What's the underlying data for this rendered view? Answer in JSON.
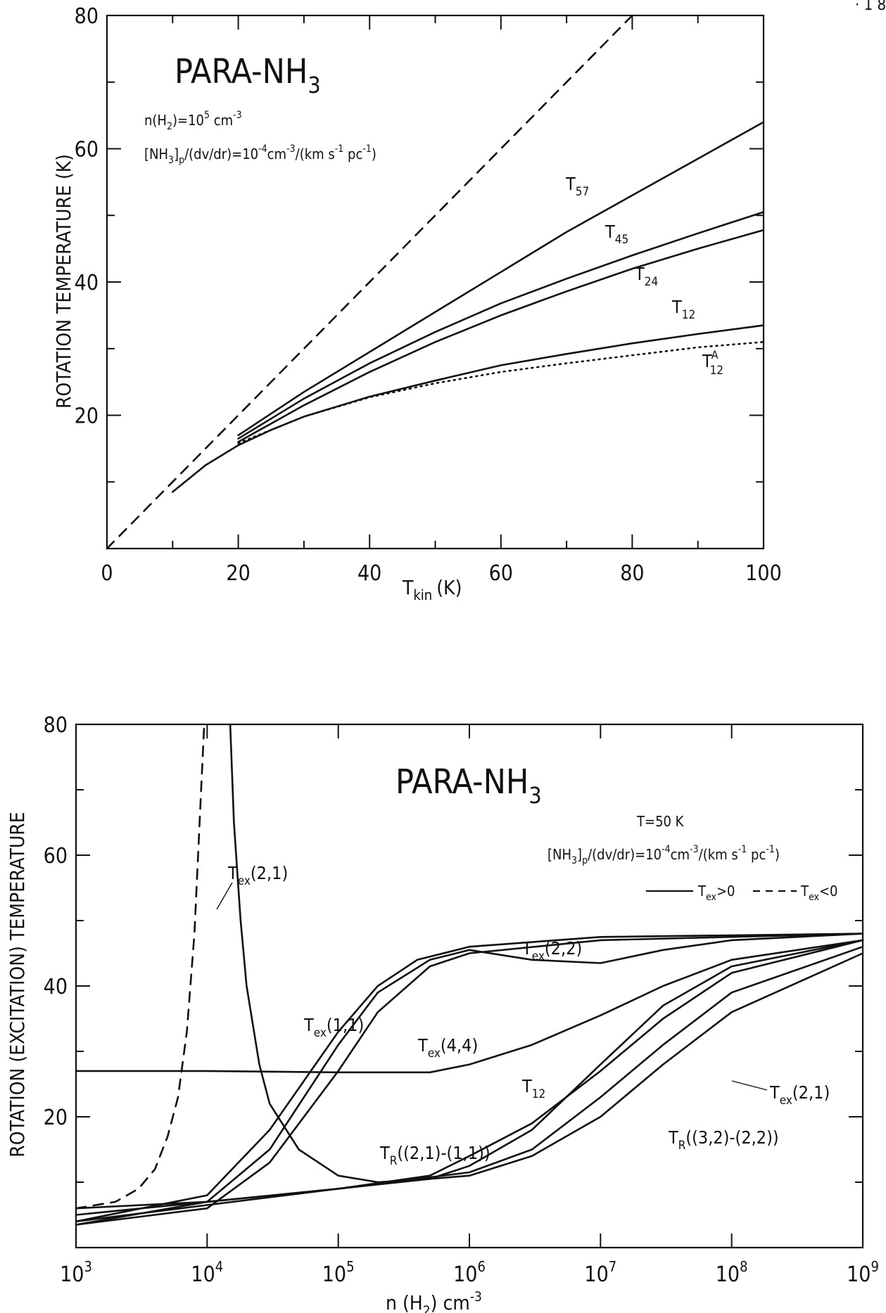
{
  "corner_mark": "· 1 8",
  "chart_data": [
    {
      "type": "line",
      "title": "PARA-NH",
      "title_sub": "3",
      "xlabel_main": "T",
      "xlabel_sub": "kin",
      "xlabel_unit": "(K)",
      "ylabel": "ROTATION TEMPERATURE (K)",
      "xlim": [
        0,
        100
      ],
      "ylim": [
        0,
        80
      ],
      "x_ticks": [
        0,
        20,
        40,
        60,
        80,
        100
      ],
      "y_ticks": [
        20,
        40,
        60,
        80
      ],
      "grid": false,
      "annotations": [
        {
          "id": "density",
          "text": "n(H2)=10^5 cm^-3"
        },
        {
          "id": "abundance",
          "text": "[NH3]p/(dv/dr)=10^-4 cm^-3/(km s^-1 pc^-1)"
        }
      ],
      "series": [
        {
          "name": "T57",
          "style": "solid",
          "points": [
            [
              20,
              17
            ],
            [
              30,
              23.5
            ],
            [
              40,
              29.5
            ],
            [
              50,
              35.5
            ],
            [
              60,
              41.5
            ],
            [
              70,
              47.5
            ],
            [
              80,
              53
            ],
            [
              90,
              58.5
            ],
            [
              100,
              64
            ]
          ]
        },
        {
          "name": "T45",
          "style": "solid",
          "points": [
            [
              20,
              16.5
            ],
            [
              30,
              22.5
            ],
            [
              40,
              27.8
            ],
            [
              50,
              32.5
            ],
            [
              60,
              36.8
            ],
            [
              70,
              40.5
            ],
            [
              80,
              44
            ],
            [
              90,
              47.3
            ],
            [
              100,
              50.5
            ]
          ]
        },
        {
          "name": "T24",
          "style": "solid",
          "points": [
            [
              20,
              16
            ],
            [
              30,
              21.5
            ],
            [
              40,
              26.5
            ],
            [
              50,
              31
            ],
            [
              60,
              35
            ],
            [
              70,
              38.6
            ],
            [
              80,
              42
            ],
            [
              90,
              45
            ],
            [
              100,
              47.8
            ]
          ]
        },
        {
          "name": "T12",
          "style": "solid",
          "points": [
            [
              10,
              8.5
            ],
            [
              15,
              12.5
            ],
            [
              20,
              15.5
            ],
            [
              25,
              17.8
            ],
            [
              30,
              19.8
            ],
            [
              40,
              22.8
            ],
            [
              50,
              25.2
            ],
            [
              60,
              27.5
            ],
            [
              70,
              29.2
            ],
            [
              80,
              30.8
            ],
            [
              90,
              32.2
            ],
            [
              100,
              33.5
            ]
          ]
        },
        {
          "name": "T12^A",
          "style": "dotted",
          "points": [
            [
              20,
              15.8
            ],
            [
              25,
              17.8
            ],
            [
              30,
              19.8
            ],
            [
              40,
              22.7
            ],
            [
              50,
              24.8
            ],
            [
              60,
              26.5
            ],
            [
              70,
              27.8
            ],
            [
              80,
              29
            ],
            [
              90,
              30.2
            ],
            [
              100,
              31
            ]
          ]
        },
        {
          "name": "",
          "style": "dashed",
          "points": [
            [
              0,
              0
            ],
            [
              80,
              80
            ]
          ]
        }
      ],
      "curve_labels": [
        {
          "main": "T",
          "sub": "57",
          "sup": ""
        },
        {
          "main": "T",
          "sub": "45",
          "sup": ""
        },
        {
          "main": "T",
          "sub": "24",
          "sup": ""
        },
        {
          "main": "T",
          "sub": "12",
          "sup": ""
        },
        {
          "main": "T",
          "sub": "12",
          "sup": "A"
        }
      ]
    },
    {
      "type": "line",
      "title": "PARA-NH",
      "title_sub": "3",
      "xlabel": "n(H2) cm^-3",
      "ylabel": "ROTATION (EXCITATION) TEMPERATURE",
      "x_scale": "log",
      "xlim": [
        1000,
        1000000000
      ],
      "ylim": [
        0,
        80
      ],
      "x_tick_exponents": [
        "3",
        "4",
        "5",
        "6",
        "7",
        "8",
        "9"
      ],
      "x_tick_base": "10",
      "y_ticks": [
        20,
        40,
        60,
        80
      ],
      "grid": false,
      "annotations": [
        {
          "id": "temperature",
          "text": "T=50 K"
        },
        {
          "id": "abundance",
          "text": "[NH3]p/(dv/dr)=10^-4 cm^-3/(km s^-1 pc^-1)"
        }
      ],
      "legend": [
        {
          "style": "solid",
          "text": "Tex>0"
        },
        {
          "style": "dashed",
          "text": "Tex<0"
        }
      ],
      "series": [
        {
          "name": "Tex(2,1) [Tex<0]",
          "style": "dashed",
          "points": [
            [
              1000,
              6
            ],
            [
              2000,
              7
            ],
            [
              3000,
              9
            ],
            [
              4000,
              12
            ],
            [
              5000,
              17
            ],
            [
              6000,
              23
            ],
            [
              7000,
              33
            ],
            [
              8000,
              48
            ],
            [
              9000,
              70
            ],
            [
              9500,
              80
            ]
          ]
        },
        {
          "name": "Tex(2,1) [Tex>0]",
          "style": "solid",
          "points": [
            [
              15000,
              80
            ],
            [
              16000,
              65
            ],
            [
              18000,
              50
            ],
            [
              20000,
              40
            ],
            [
              25000,
              28
            ],
            [
              30000,
              22
            ],
            [
              50000,
              15
            ],
            [
              100000,
              11
            ],
            [
              200000,
              10
            ],
            [
              500000,
              10.5
            ],
            [
              1000000,
              12.5
            ],
            [
              3000000,
              18
            ],
            [
              10000000,
              28
            ],
            [
              30000000,
              37
            ],
            [
              100000000,
              43
            ],
            [
              1000000000,
              47
            ]
          ]
        },
        {
          "name": "Tex(1,1)",
          "style": "solid",
          "points": [
            [
              1000,
              4
            ],
            [
              10000,
              8
            ],
            [
              30000,
              18
            ],
            [
              100000,
              33
            ],
            [
              200000,
              40
            ],
            [
              400000,
              44
            ],
            [
              1000000,
              46
            ],
            [
              10000000,
              47.5
            ],
            [
              1000000000,
              48
            ]
          ]
        },
        {
          "name": "Tex(4,4)",
          "style": "solid",
          "points": [
            [
              1000,
              3.5
            ],
            [
              10000,
              6
            ],
            [
              30000,
              13
            ],
            [
              100000,
              27
            ],
            [
              200000,
              36
            ],
            [
              500000,
              43
            ],
            [
              1000000,
              45
            ],
            [
              10000000,
              47
            ],
            [
              1000000000,
              48
            ]
          ]
        },
        {
          "name": "Tex(2,2)",
          "style": "solid",
          "points": [
            [
              1000,
              3.5
            ],
            [
              10000,
              7
            ],
            [
              30000,
              15
            ],
            [
              100000,
              31
            ],
            [
              200000,
              39
            ],
            [
              500000,
              44
            ],
            [
              1000000,
              45.5
            ],
            [
              3000000,
              44
            ],
            [
              10000000,
              43.5
            ],
            [
              30000000,
              45.5
            ],
            [
              100000000,
              47
            ],
            [
              1000000000,
              48
            ]
          ]
        },
        {
          "name": "T12",
          "style": "solid",
          "points": [
            [
              1000,
              27
            ],
            [
              10000,
              27
            ],
            [
              100000,
              26.8
            ],
            [
              500000,
              26.8
            ],
            [
              1000000,
              28
            ],
            [
              3000000,
              31
            ],
            [
              10000000,
              35.5
            ],
            [
              30000000,
              40
            ],
            [
              100000000,
              44
            ],
            [
              1000000000,
              47
            ]
          ]
        },
        {
          "name": "TR((2,1)-(1,1))",
          "style": "solid",
          "points": [
            [
              1000,
              5
            ],
            [
              10000,
              7
            ],
            [
              100000,
              9
            ],
            [
              500000,
              11
            ],
            [
              1000000,
              14
            ],
            [
              3000000,
              19
            ],
            [
              10000000,
              27
            ],
            [
              30000000,
              35
            ],
            [
              100000000,
              42
            ],
            [
              1000000000,
              47
            ]
          ]
        },
        {
          "name": "TR((3,2)-(2,2))",
          "style": "solid",
          "points": [
            [
              1000,
              4
            ],
            [
              10000,
              6.5
            ],
            [
              100000,
              9
            ],
            [
              500000,
              10.5
            ],
            [
              1000000,
              11
            ],
            [
              3000000,
              14
            ],
            [
              10000000,
              20
            ],
            [
              30000000,
              28
            ],
            [
              100000000,
              36
            ],
            [
              1000000000,
              45
            ]
          ]
        },
        {
          "name": "",
          "style": "solid",
          "points": [
            [
              1000,
              6
            ],
            [
              10000,
              7
            ],
            [
              100000,
              9
            ],
            [
              1000000,
              11.5
            ],
            [
              3000000,
              15
            ],
            [
              10000000,
              23
            ],
            [
              30000000,
              31
            ],
            [
              100000000,
              39
            ],
            [
              1000000000,
              46
            ]
          ]
        }
      ],
      "curve_labels": [
        {
          "main": "T",
          "sub": "ex",
          "tail": "(2,1)"
        },
        {
          "main": "T",
          "sub": "ex",
          "tail": "(2,2)"
        },
        {
          "main": "T",
          "sub": "ex",
          "tail": "(1,1)"
        },
        {
          "main": "T",
          "sub": "ex",
          "tail": "(4,4)"
        },
        {
          "main": "T",
          "sub": "12",
          "tail": ""
        },
        {
          "main": "T",
          "sub": "ex",
          "tail": "(2,1)"
        },
        {
          "main": "T",
          "sub": "R",
          "tail": "((2,1)-(1,1))"
        },
        {
          "main": "T",
          "sub": "R",
          "tail": "((3,2)-(2,2))"
        }
      ]
    }
  ]
}
